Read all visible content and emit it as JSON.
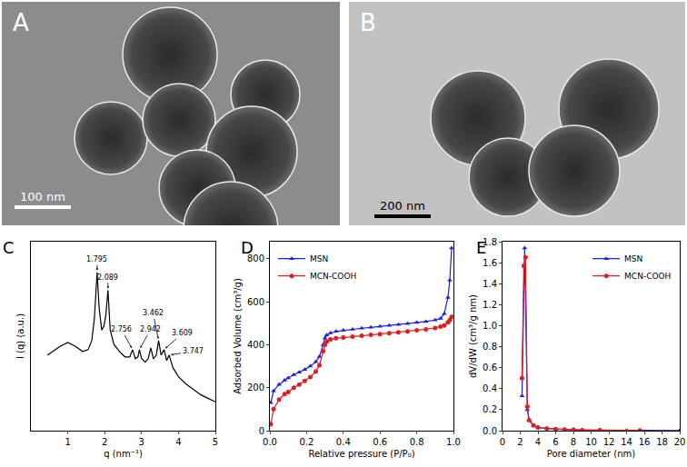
{
  "images": [
    {
      "panel": "A",
      "scale_bar": "100 nm"
    },
    {
      "panel": "B",
      "scale_bar": "200 nm"
    }
  ],
  "chart_data": [
    {
      "panel": "C",
      "type": "line",
      "x_label": "q (nm⁻¹)",
      "y_label": "I (q) (a.u.)",
      "x": [
        0.45,
        0.6,
        0.8,
        1.0,
        1.2,
        1.4,
        1.55,
        1.65,
        1.72,
        1.795,
        1.85,
        1.92,
        1.98,
        2.03,
        2.089,
        2.15,
        2.25,
        2.4,
        2.55,
        2.68,
        2.756,
        2.83,
        2.9,
        2.942,
        3.0,
        3.1,
        3.18,
        3.25,
        3.32,
        3.4,
        3.462,
        3.53,
        3.609,
        3.68,
        3.747,
        3.85,
        4.0,
        4.2,
        4.4,
        4.6,
        4.8,
        5.0
      ],
      "series": [
        {
          "color": "#000000",
          "values": [
            0.42,
            0.44,
            0.47,
            0.49,
            0.47,
            0.44,
            0.45,
            0.5,
            0.62,
            0.88,
            0.68,
            0.56,
            0.58,
            0.64,
            0.78,
            0.56,
            0.48,
            0.44,
            0.41,
            0.41,
            0.45,
            0.4,
            0.41,
            0.45,
            0.4,
            0.38,
            0.4,
            0.46,
            0.4,
            0.42,
            0.5,
            0.42,
            0.45,
            0.39,
            0.42,
            0.35,
            0.3,
            0.26,
            0.23,
            0.2,
            0.18,
            0.16
          ]
        }
      ],
      "annotations": [
        {
          "x": 1.795,
          "text": "1.795"
        },
        {
          "x": 2.089,
          "text": "2.089"
        },
        {
          "x": 2.756,
          "text": "2.756"
        },
        {
          "x": 2.942,
          "text": "2.942"
        },
        {
          "x": 3.462,
          "text": "3.462"
        },
        {
          "x": 3.609,
          "text": "3.609"
        },
        {
          "x": 3.747,
          "text": "3.747"
        }
      ],
      "xlim": [
        0,
        5
      ],
      "xticks": [
        1,
        2,
        3,
        4,
        5
      ],
      "ylim": [
        0,
        1.05
      ],
      "tick_labels": "x"
    },
    {
      "panel": "D",
      "type": "line",
      "x_label": "Relative pressure (P/P₀)",
      "y_label": "Adsorbed Volume (cm³/g)",
      "x": [
        0.005,
        0.02,
        0.05,
        0.08,
        0.1,
        0.13,
        0.16,
        0.19,
        0.22,
        0.25,
        0.27,
        0.29,
        0.3,
        0.31,
        0.33,
        0.36,
        0.4,
        0.45,
        0.5,
        0.55,
        0.6,
        0.65,
        0.7,
        0.75,
        0.8,
        0.85,
        0.9,
        0.93,
        0.95,
        0.97,
        0.98,
        0.99
      ],
      "series": [
        {
          "name": "MSN",
          "color": "#1f1fe0",
          "marker": "triangle",
          "values": [
            130,
            185,
            215,
            235,
            245,
            260,
            272,
            285,
            300,
            320,
            345,
            400,
            430,
            445,
            455,
            462,
            467,
            472,
            477,
            481,
            485,
            490,
            494,
            498,
            503,
            508,
            515,
            522,
            545,
            620,
            700,
            850
          ]
        },
        {
          "name": "MCN-COOH",
          "color": "#e01f1f",
          "marker": "circle",
          "values": [
            30,
            100,
            145,
            170,
            180,
            200,
            215,
            232,
            250,
            275,
            305,
            370,
            400,
            415,
            425,
            430,
            434,
            438,
            442,
            446,
            450,
            454,
            458,
            462,
            467,
            472,
            478,
            484,
            490,
            505,
            515,
            530
          ]
        }
      ],
      "xlim": [
        0,
        1
      ],
      "xticks": [
        {
          "value": 0,
          "label": "0.0"
        },
        0.2,
        0.4,
        0.6,
        0.8,
        {
          "value": 1,
          "label": "1.0"
        }
      ],
      "ylim": [
        0,
        880
      ],
      "yticks": [
        0,
        200,
        400,
        600,
        800
      ],
      "legend": "upper left"
    },
    {
      "panel": "E",
      "type": "line",
      "x_label": "Pore diameter (nm)",
      "y_label": "dV/dW (cm³/g nm)",
      "series": [
        {
          "name": "MSN",
          "color": "#1f1fe0",
          "marker": "triangle",
          "x": [
            2.2,
            2.5,
            2.8,
            3.0,
            3.5,
            4,
            5,
            6,
            7,
            8,
            9,
            11,
            14,
            20
          ],
          "values": [
            0.33,
            1.74,
            0.2,
            0.1,
            0.05,
            0.03,
            0.02,
            0.015,
            0.01,
            0.01,
            0.005,
            0.005,
            0.003,
            0.002
          ]
        },
        {
          "name": "MCN-COOH",
          "color": "#e01f1f",
          "marker": "circle",
          "x": [
            2.2,
            2.4,
            2.6,
            2.8,
            3.0,
            3.5,
            4,
            5,
            6,
            7,
            8,
            9,
            11,
            15.5
          ],
          "values": [
            0.5,
            1.57,
            1.65,
            0.23,
            0.1,
            0.05,
            0.03,
            0.02,
            0.015,
            0.01,
            0.008,
            0.005,
            0.004,
            0.003
          ]
        }
      ],
      "xlim": [
        0,
        20
      ],
      "xticks": [
        0,
        2,
        4,
        6,
        8,
        10,
        12,
        14,
        16,
        18,
        20
      ],
      "ylim": [
        0,
        1.8
      ],
      "yticks": [
        {
          "value": 0,
          "label": "0.0"
        },
        0.2,
        0.4,
        0.6,
        0.8,
        {
          "value": 1,
          "label": "1.0"
        },
        1.2,
        1.4,
        1.6,
        1.8
      ],
      "legend": "upper right"
    }
  ]
}
